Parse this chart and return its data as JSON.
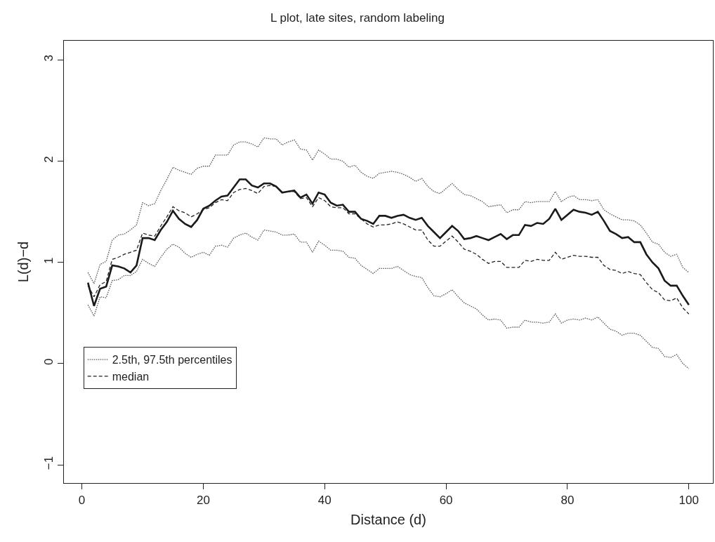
{
  "chart_data": {
    "type": "line",
    "title": "L plot, late sites, random labeling",
    "xlabel": "Distance (d)",
    "ylabel": "L(d)−d",
    "x": [
      1,
      2,
      3,
      4,
      5,
      6,
      7,
      8,
      9,
      10,
      11,
      12,
      13,
      14,
      15,
      16,
      17,
      18,
      19,
      20,
      21,
      22,
      23,
      24,
      25,
      26,
      27,
      28,
      29,
      30,
      31,
      32,
      33,
      34,
      35,
      36,
      37,
      38,
      39,
      40,
      41,
      42,
      43,
      44,
      45,
      46,
      47,
      48,
      49,
      50,
      51,
      52,
      53,
      54,
      55,
      56,
      57,
      58,
      59,
      60,
      61,
      62,
      63,
      64,
      65,
      66,
      67,
      68,
      69,
      70,
      71,
      72,
      73,
      74,
      75,
      76,
      77,
      78,
      79,
      80,
      81,
      82,
      83,
      84,
      85,
      86,
      87,
      88,
      89,
      90,
      91,
      92,
      93,
      94,
      95,
      96,
      97,
      98,
      99,
      100
    ],
    "series": [
      {
        "name": "2.5th, 97.5th percentiles",
        "color": "#555555",
        "line_style": "dotted",
        "values": [
          0.9,
          0.79,
          0.98,
          1.01,
          1.22,
          1.27,
          1.28,
          1.32,
          1.37,
          1.59,
          1.56,
          1.58,
          1.71,
          1.82,
          1.94,
          1.91,
          1.89,
          1.87,
          1.93,
          1.95,
          1.95,
          2.06,
          2.06,
          2.06,
          2.16,
          2.19,
          2.19,
          2.17,
          2.14,
          2.23,
          2.22,
          2.22,
          2.16,
          2.19,
          2.21,
          2.12,
          2.11,
          2.01,
          2.11,
          2.07,
          2.02,
          2.02,
          2.0,
          1.94,
          1.96,
          1.89,
          1.85,
          1.83,
          1.88,
          1.89,
          1.9,
          1.89,
          1.87,
          1.84,
          1.8,
          1.83,
          1.75,
          1.7,
          1.68,
          1.73,
          1.78,
          1.72,
          1.67,
          1.66,
          1.63,
          1.6,
          1.55,
          1.56,
          1.57,
          1.49,
          1.52,
          1.52,
          1.6,
          1.59,
          1.6,
          1.6,
          1.6,
          1.7,
          1.6,
          1.64,
          1.66,
          1.62,
          1.62,
          1.61,
          1.62,
          1.52,
          1.48,
          1.45,
          1.42,
          1.42,
          1.41,
          1.37,
          1.29,
          1.2,
          1.18,
          1.1,
          1.06,
          1.08,
          0.95,
          0.9
        ]
      },
      {
        "color": "#555555",
        "line_style": "dotted",
        "values": [
          0.58,
          0.47,
          0.66,
          0.65,
          0.82,
          0.83,
          0.87,
          0.87,
          0.91,
          1.03,
          0.99,
          0.96,
          1.05,
          1.13,
          1.18,
          1.15,
          1.09,
          1.05,
          1.08,
          1.1,
          1.07,
          1.16,
          1.17,
          1.15,
          1.24,
          1.27,
          1.29,
          1.25,
          1.22,
          1.32,
          1.31,
          1.3,
          1.27,
          1.27,
          1.28,
          1.2,
          1.2,
          1.1,
          1.21,
          1.17,
          1.12,
          1.12,
          1.11,
          1.05,
          1.04,
          0.97,
          0.93,
          0.89,
          0.94,
          0.94,
          0.94,
          0.96,
          0.92,
          0.88,
          0.86,
          0.85,
          0.75,
          0.67,
          0.66,
          0.69,
          0.73,
          0.66,
          0.6,
          0.57,
          0.54,
          0.48,
          0.43,
          0.44,
          0.43,
          0.35,
          0.36,
          0.36,
          0.43,
          0.41,
          0.41,
          0.4,
          0.41,
          0.49,
          0.4,
          0.43,
          0.44,
          0.43,
          0.45,
          0.43,
          0.46,
          0.4,
          0.34,
          0.32,
          0.28,
          0.3,
          0.3,
          0.28,
          0.22,
          0.16,
          0.15,
          0.07,
          0.06,
          0.09,
          0.0,
          -0.05
        ]
      },
      {
        "name": "median",
        "color": "#222222",
        "line_style": "dashed",
        "values": [
          0.77,
          0.66,
          0.78,
          0.81,
          1.03,
          1.05,
          1.08,
          1.1,
          1.12,
          1.29,
          1.27,
          1.26,
          1.36,
          1.45,
          1.55,
          1.51,
          1.49,
          1.45,
          1.48,
          1.52,
          1.54,
          1.59,
          1.62,
          1.61,
          1.69,
          1.72,
          1.73,
          1.71,
          1.68,
          1.75,
          1.76,
          1.75,
          1.69,
          1.7,
          1.7,
          1.63,
          1.64,
          1.55,
          1.64,
          1.61,
          1.55,
          1.54,
          1.54,
          1.48,
          1.48,
          1.43,
          1.38,
          1.35,
          1.37,
          1.37,
          1.38,
          1.4,
          1.38,
          1.35,
          1.32,
          1.32,
          1.22,
          1.16,
          1.16,
          1.21,
          1.26,
          1.2,
          1.13,
          1.11,
          1.08,
          1.03,
          0.99,
          1.01,
          1.01,
          0.95,
          0.95,
          0.95,
          1.02,
          1.01,
          1.03,
          1.02,
          1.02,
          1.1,
          1.03,
          1.05,
          1.07,
          1.06,
          1.06,
          1.05,
          1.05,
          0.97,
          0.93,
          0.92,
          0.89,
          0.91,
          0.89,
          0.88,
          0.8,
          0.73,
          0.7,
          0.63,
          0.62,
          0.65,
          0.55,
          0.49
        ]
      },
      {
        "color": "#1a1a1a",
        "line_style": "solid",
        "values": [
          0.8,
          0.57,
          0.74,
          0.76,
          0.97,
          0.96,
          0.94,
          0.9,
          0.97,
          1.24,
          1.24,
          1.22,
          1.32,
          1.4,
          1.51,
          1.43,
          1.38,
          1.35,
          1.42,
          1.53,
          1.56,
          1.61,
          1.65,
          1.66,
          1.74,
          1.82,
          1.82,
          1.76,
          1.74,
          1.78,
          1.78,
          1.75,
          1.69,
          1.7,
          1.71,
          1.64,
          1.67,
          1.58,
          1.69,
          1.67,
          1.59,
          1.56,
          1.57,
          1.5,
          1.5,
          1.43,
          1.41,
          1.38,
          1.46,
          1.46,
          1.44,
          1.46,
          1.47,
          1.44,
          1.42,
          1.44,
          1.36,
          1.3,
          1.24,
          1.3,
          1.36,
          1.31,
          1.23,
          1.24,
          1.26,
          1.24,
          1.22,
          1.25,
          1.28,
          1.23,
          1.27,
          1.27,
          1.37,
          1.36,
          1.39,
          1.38,
          1.43,
          1.53,
          1.42,
          1.47,
          1.52,
          1.5,
          1.49,
          1.47,
          1.5,
          1.41,
          1.31,
          1.28,
          1.24,
          1.25,
          1.2,
          1.2,
          1.08,
          1.0,
          0.94,
          0.82,
          0.77,
          0.77,
          0.67,
          0.58
        ]
      }
    ],
    "xlim": [
      -2.96,
      103.96
    ],
    "xticks": [
      0,
      20,
      40,
      60,
      80,
      100
    ],
    "ylim": [
      -1.18,
      3.19
    ],
    "yticks": [
      {
        "value": -1,
        "label": "−1"
      },
      0,
      1,
      2,
      3
    ],
    "grid": false,
    "legend": "left",
    "marker": "none"
  }
}
